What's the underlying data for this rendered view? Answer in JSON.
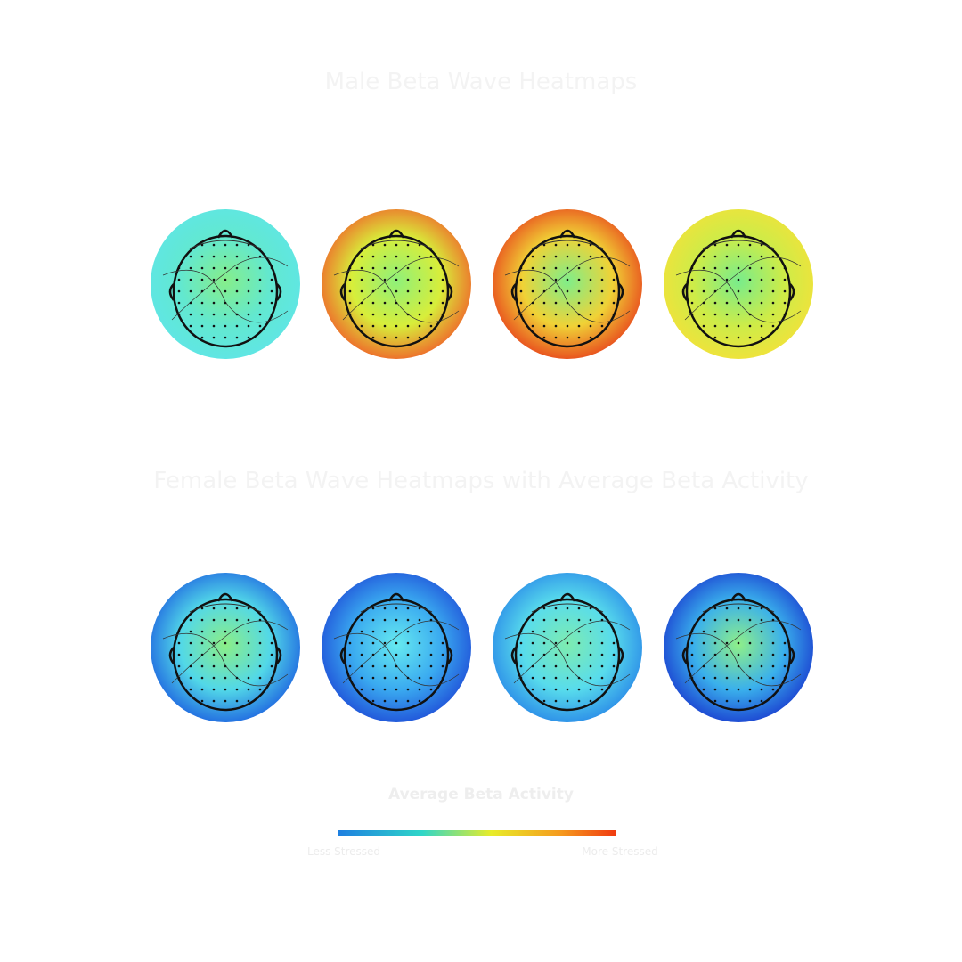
{
  "sections": [
    {
      "title": "Male Beta Wave Heatmaps"
    },
    {
      "title": "Female Beta Wave Heatmaps with Average Beta Activity"
    }
  ],
  "legend": {
    "title": "Average Beta Activity",
    "low_label": "Less Stressed",
    "high_label": "More Stressed"
  }
}
